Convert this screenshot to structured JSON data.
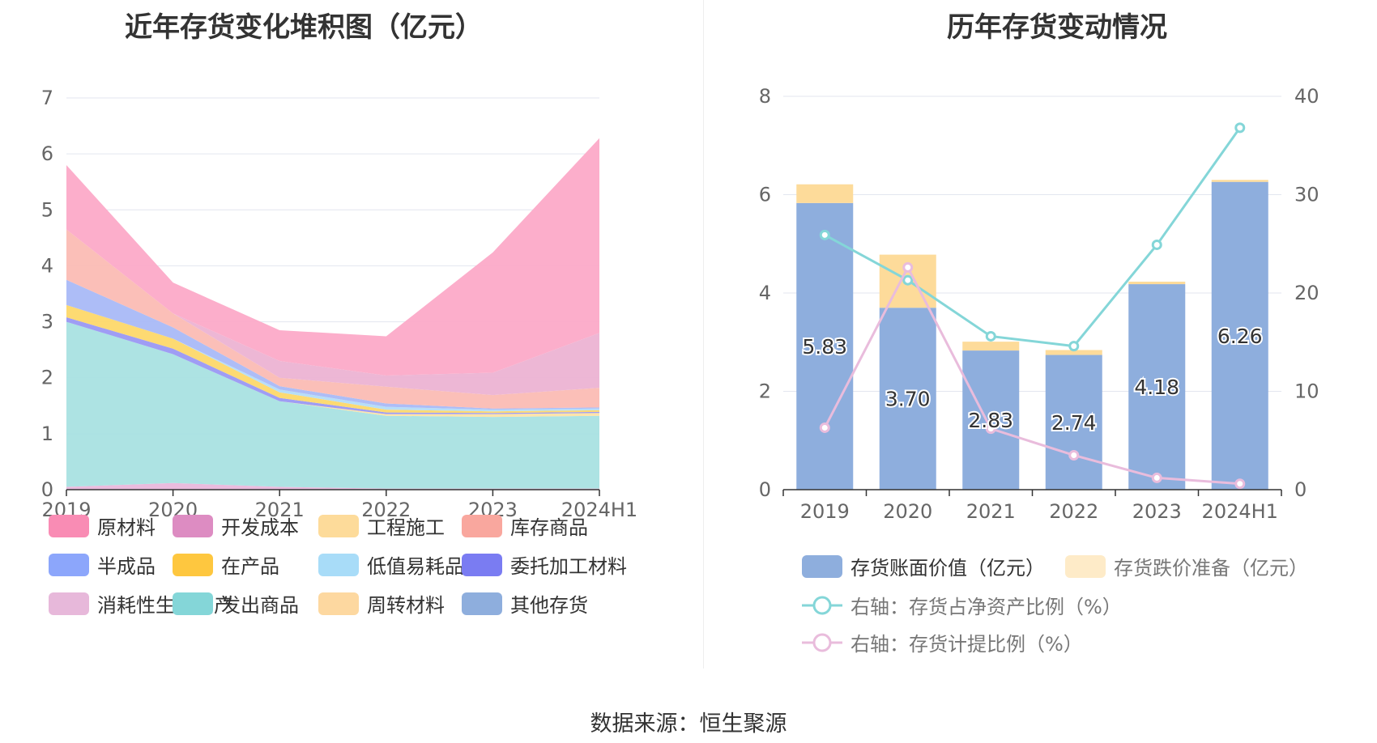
{
  "left_title": "近年存货变化堆积图（亿元）",
  "right_title": "历年存货变动情况",
  "source": "数据来源：恒生聚源",
  "chart_data": [
    {
      "type": "area",
      "title": "近年存货变化堆积图（亿元）",
      "stacked": true,
      "x": [
        "2019",
        "2020",
        "2021",
        "2022",
        "2023",
        "2024H1"
      ],
      "ylim": [
        0,
        7
      ],
      "yticks": [
        0,
        1,
        2,
        3,
        4,
        5,
        6,
        7
      ],
      "grid": true,
      "legend_position": "bottom",
      "series": [
        {
          "name": "消耗性生物资产",
          "color": "#e9b8dc",
          "values": [
            0.05,
            0.12,
            0.05,
            0.02,
            0.02,
            0.02
          ]
        },
        {
          "name": "发出商品",
          "color": "#a9e2e2",
          "values": [
            2.95,
            2.3,
            1.53,
            1.3,
            1.28,
            1.3
          ]
        },
        {
          "name": "周转材料",
          "color": "#fde3a7",
          "values": [
            0.0,
            0.0,
            0.0,
            0.03,
            0.05,
            0.05
          ]
        },
        {
          "name": "委托加工材料",
          "color": "#9a98f3",
          "values": [
            0.08,
            0.1,
            0.06,
            0.03,
            0.02,
            0.02
          ]
        },
        {
          "name": "在产品",
          "color": "#fdd86a",
          "values": [
            0.22,
            0.18,
            0.1,
            0.05,
            0.03,
            0.03
          ]
        },
        {
          "name": "低值易耗品",
          "color": "#b3dcf8",
          "values": [
            0.0,
            0.0,
            0.05,
            0.05,
            0.03,
            0.03
          ]
        },
        {
          "name": "半成品",
          "color": "#a9b9f7",
          "values": [
            0.45,
            0.2,
            0.06,
            0.06,
            0.02,
            0.02
          ]
        },
        {
          "name": "库存商品",
          "color": "#fbbcb4",
          "values": [
            0.9,
            0.25,
            0.15,
            0.3,
            0.24,
            0.35
          ]
        },
        {
          "name": "其他存货",
          "color": "#ecb3d3",
          "values": [
            0.0,
            0.0,
            0.3,
            0.2,
            0.4,
            0.98
          ]
        },
        {
          "name": "原材料",
          "color": "#fcaac8",
          "values": [
            1.15,
            0.55,
            0.55,
            0.7,
            2.15,
            3.48
          ]
        }
      ],
      "legend_items": [
        {
          "name": "原材料",
          "color": "#f98cb4"
        },
        {
          "name": "开发成本",
          "color": "#dd8cc2"
        },
        {
          "name": "工程施工",
          "color": "#fddb9a"
        },
        {
          "name": "库存商品",
          "color": "#f9a79e"
        },
        {
          "name": "半成品",
          "color": "#8ca6fb"
        },
        {
          "name": "在产品",
          "color": "#fec73f"
        },
        {
          "name": "低值易耗品",
          "color": "#a8dcf8"
        },
        {
          "name": "委托加工材料",
          "color": "#7a7cf2"
        },
        {
          "name": "消耗性生物资产",
          "color": "#e7b8da"
        },
        {
          "name": "发出商品",
          "color": "#84d6d8"
        },
        {
          "name": "周转材料",
          "color": "#fdd8a0"
        },
        {
          "name": "其他存货",
          "color": "#8eaedd"
        }
      ]
    },
    {
      "type": "bar",
      "title": "历年存货变动情况",
      "stacked": true,
      "categories": [
        "2019",
        "2020",
        "2021",
        "2022",
        "2023",
        "2024H1"
      ],
      "ylim": [
        0,
        8
      ],
      "yticks": [
        0,
        2,
        4,
        6,
        8
      ],
      "y2lim": [
        0,
        40
      ],
      "y2ticks": [
        0,
        10,
        20,
        30,
        40
      ],
      "grid": true,
      "legend_position": "bottom",
      "series": [
        {
          "name": "存货账面价值（亿元）",
          "type": "bar",
          "color": "#8eaedd",
          "values": [
            5.83,
            3.7,
            2.83,
            2.74,
            4.18,
            6.26
          ],
          "labels": [
            "5.83",
            "3.70",
            "2.83",
            "2.74",
            "4.18",
            "6.26"
          ]
        },
        {
          "name": "存货跌价准备（亿元）",
          "type": "bar",
          "color": "#fddb9a",
          "legend_color": "#feebc8",
          "values": [
            0.38,
            1.08,
            0.18,
            0.1,
            0.05,
            0.04
          ]
        },
        {
          "name": "右轴：存货占净资产比例（%）",
          "type": "line",
          "axis": "right",
          "color": "#84d6d8",
          "values": [
            25.9,
            21.3,
            15.6,
            14.6,
            24.9,
            36.8
          ]
        },
        {
          "name": "右轴：存货计提比例（%）",
          "type": "line",
          "axis": "right",
          "color": "#e9bcdc",
          "values": [
            6.3,
            22.6,
            6.2,
            3.5,
            1.2,
            0.6
          ]
        }
      ]
    }
  ]
}
